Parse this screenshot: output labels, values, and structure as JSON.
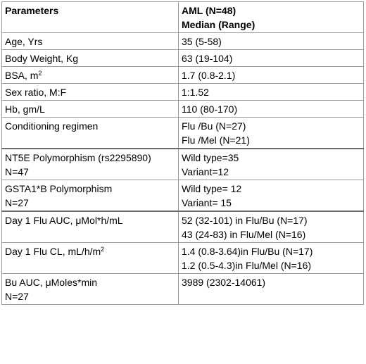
{
  "header": {
    "col1": "Parameters",
    "col2_line1": "AML (N=48)",
    "col2_line2": "Median (Range)"
  },
  "rows": [
    {
      "param": [
        "Age, Yrs"
      ],
      "value": [
        "35 (5-58)"
      ]
    },
    {
      "param": [
        "Body Weight, Kg"
      ],
      "value": [
        "63 (19-104)"
      ]
    },
    {
      "param_pre": "BSA, m",
      "param_sup": "2",
      "value": [
        "1.7 (0.8-2.1)"
      ]
    },
    {
      "param": [
        "Sex ratio, M:F"
      ],
      "value": [
        "1:1.52"
      ]
    },
    {
      "param": [
        "Hb, gm/L"
      ],
      "value": [
        "110 (80-170)"
      ]
    },
    {
      "param": [
        "Conditioning regimen"
      ],
      "value": [
        "Flu /Bu (N=27)",
        "Flu /Mel (N=21)"
      ]
    },
    {
      "param": [
        "NT5E Polymorphism (rs2295890)",
        "N=47"
      ],
      "value": [
        "Wild type=35",
        "Variant=12"
      ]
    },
    {
      "param": [
        "GSTA1*B Polymorphism",
        "N=27"
      ],
      "value": [
        "Wild type= 12",
        "Variant= 15"
      ]
    },
    {
      "param": [
        "Day 1 Flu AUC, μMol*h/mL"
      ],
      "value": [
        "52 (32-101) in Flu/Bu (N=17)",
        "43 (24-83) in Flu/Mel (N=16)"
      ]
    },
    {
      "param_pre": "Day 1 Flu CL, mL/h/m",
      "param_sup": "2",
      "value": [
        "1.4 (0.8-3.64)in Flu/Bu (N=17)",
        "1.2 (0.5-4.3)in Flu/Mel (N=16)"
      ]
    },
    {
      "param": [
        "Bu AUC, μMoles*min",
        "N=27"
      ],
      "value": [
        "3989 (2302-14061)"
      ]
    }
  ]
}
